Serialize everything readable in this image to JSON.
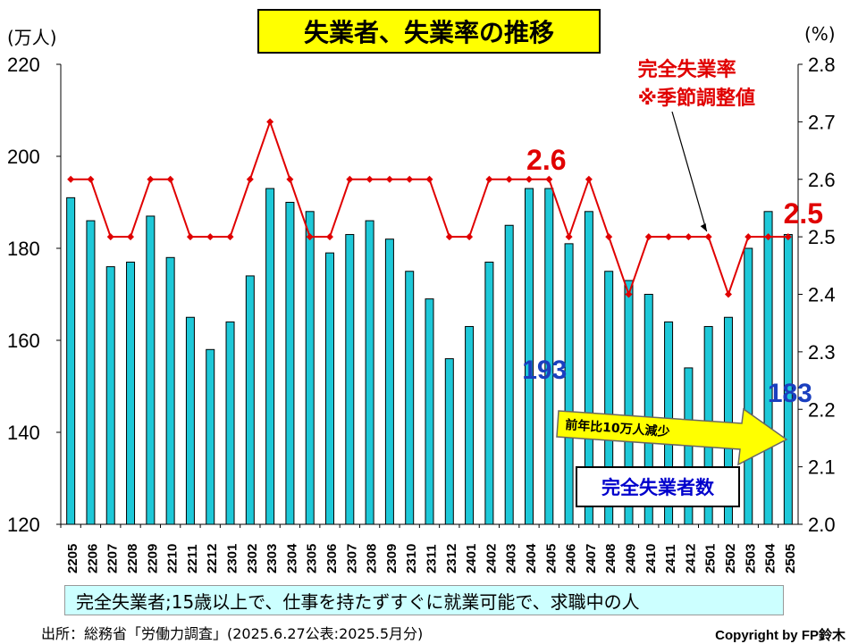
{
  "title": "失業者、失業率の推移",
  "left_unit": "(万人)",
  "right_unit": "(%)",
  "rate_legend_line1": "完全失業率",
  "rate_legend_line2": "※季節調整値",
  "count_legend": "完全失業者数",
  "arrow_label": "前年比10万人減少",
  "definition": "完全失業者;15歳以上で、仕事を持たずすぐに就業可能で、求職中の人",
  "source": "出所：総務省「労働力調査」(2025.6.27公表:2025.5月分)",
  "copyright": "Copyright by FP鈴木",
  "colors": {
    "bar": "#1ec8d8",
    "bar_outline": "#000000",
    "rate_line": "#e00000",
    "value_blue": "#1a3fbf",
    "value_red": "#e00000"
  },
  "chart_data": {
    "type": "bar",
    "categories": [
      "2205",
      "2206",
      "2207",
      "2208",
      "2209",
      "2210",
      "2211",
      "2212",
      "2301",
      "2302",
      "2303",
      "2304",
      "2305",
      "2306",
      "2307",
      "2308",
      "2309",
      "2310",
      "2311",
      "2312",
      "2401",
      "2402",
      "2403",
      "2404",
      "2405",
      "2406",
      "2407",
      "2408",
      "2409",
      "2410",
      "2411",
      "2412",
      "2501",
      "2502",
      "2503",
      "2504",
      "2505"
    ],
    "series": [
      {
        "name": "完全失業者数",
        "type": "bar",
        "axis": "left",
        "values": [
          191,
          186,
          176,
          177,
          187,
          178,
          165,
          158,
          164,
          174,
          193,
          190,
          188,
          179,
          183,
          186,
          182,
          175,
          169,
          156,
          163,
          177,
          185,
          193,
          193,
          181,
          188,
          175,
          173,
          170,
          164,
          154,
          163,
          165,
          180,
          188,
          183
        ]
      },
      {
        "name": "完全失業率",
        "type": "line",
        "axis": "right",
        "values": [
          2.6,
          2.6,
          2.5,
          2.5,
          2.6,
          2.6,
          2.5,
          2.5,
          2.5,
          2.6,
          2.7,
          2.6,
          2.5,
          2.5,
          2.6,
          2.6,
          2.6,
          2.6,
          2.6,
          2.5,
          2.5,
          2.6,
          2.6,
          2.6,
          2.6,
          2.5,
          2.6,
          2.5,
          2.4,
          2.5,
          2.5,
          2.5,
          2.5,
          2.4,
          2.5,
          2.5,
          2.5
        ]
      }
    ],
    "left_axis": {
      "ylim": [
        120,
        220
      ],
      "ticks": [
        "120",
        "140",
        "160",
        "180",
        "200",
        "220"
      ]
    },
    "right_axis": {
      "ylim": [
        2.0,
        2.8
      ],
      "ticks": [
        "2.0",
        "2.1",
        "2.2",
        "2.3",
        "2.4",
        "2.5",
        "2.6",
        "2.7",
        "2.8"
      ]
    },
    "annotations": {
      "bar_2405": "193",
      "bar_2505": "183",
      "rate_2405": "2.6",
      "rate_2505": "2.5"
    }
  }
}
